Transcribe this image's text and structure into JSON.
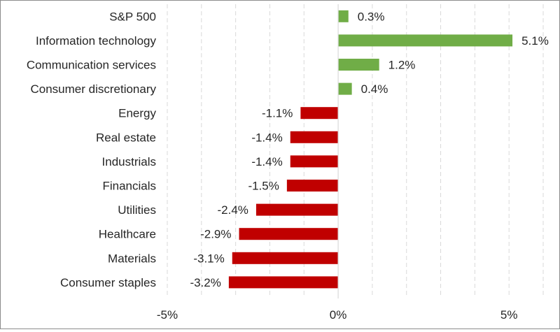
{
  "chart_data": {
    "type": "bar",
    "orientation": "horizontal",
    "categories": [
      "S&P 500",
      "Information technology",
      "Communication services",
      "Consumer discretionary",
      "Energy",
      "Real estate",
      "Industrials",
      "Financials",
      "Utilities",
      "Healthcare",
      "Materials",
      "Consumer staples"
    ],
    "values": [
      0.3,
      5.1,
      1.2,
      0.4,
      -1.1,
      -1.4,
      -1.4,
      -1.5,
      -2.4,
      -2.9,
      -3.1,
      -3.2
    ],
    "value_labels": [
      "0.3%",
      "5.1%",
      "1.2%",
      "0.4%",
      "-1.1%",
      "-1.4%",
      "-1.4%",
      "-1.5%",
      "-2.4%",
      "-2.9%",
      "-3.1%",
      "-3.2%"
    ],
    "xlim": [
      -5,
      6
    ],
    "x_ticks": [
      {
        "value": -5,
        "label": "-5%"
      },
      {
        "value": 0,
        "label": "0%"
      },
      {
        "value": 5,
        "label": "5%"
      }
    ],
    "gridlines": [
      -5,
      -4,
      -3,
      -2,
      -1,
      1,
      2,
      3,
      4,
      5,
      6
    ],
    "grid": true,
    "grid_style": "dashed vertical",
    "title": "",
    "xlabel": "",
    "ylabel": "",
    "legend": "none",
    "colors": {
      "positive": "#70ad47",
      "negative": "#c00000",
      "grid": "#d9d9d9",
      "axis": "#d9d9d9",
      "text": "#262626"
    }
  }
}
